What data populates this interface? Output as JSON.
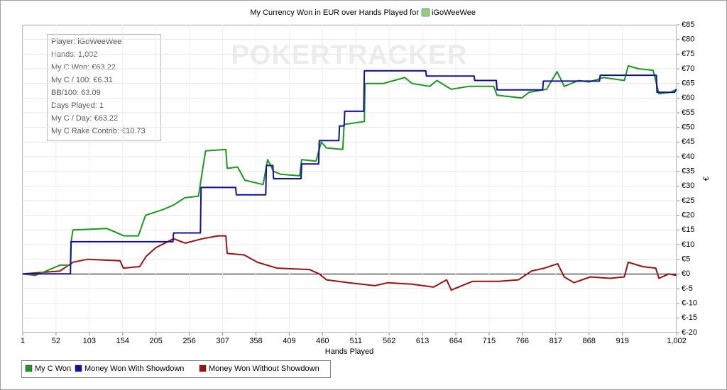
{
  "chart_data": {
    "type": "line",
    "title": "My Currency Won in EUR over Hands Played for",
    "title_player": "iGoWeeWee",
    "watermark": "POKERTRACKER",
    "x_label": "Hands Played",
    "y_label": "€",
    "stats_box": [
      "Player: iGoWeeWee",
      "Hands: 1,002",
      "My C Won: €63.22",
      "My C / 100: €6.31",
      "BB/100: 63.09",
      "Days Played: 1",
      "My C / Day: €63.22",
      "My C Rake Contrib: €10.73"
    ],
    "xlim": [
      1,
      1002
    ],
    "xticks": [
      1,
      52,
      103,
      154,
      205,
      256,
      307,
      358,
      409,
      460,
      511,
      562,
      613,
      664,
      715,
      766,
      817,
      868,
      919,
      {
        "value": 1002,
        "label": "1,002"
      }
    ],
    "ylim": [
      -20,
      85
    ],
    "yticks": [
      {
        "value": -20,
        "label": "€-20"
      },
      {
        "value": -15,
        "label": "€-15"
      },
      {
        "value": -10,
        "label": "€-10"
      },
      {
        "value": -5,
        "label": "€-5"
      },
      {
        "value": 0,
        "label": "€0"
      },
      {
        "value": 5,
        "label": "€5"
      },
      {
        "value": 10,
        "label": "€10"
      },
      {
        "value": 15,
        "label": "€15"
      },
      {
        "value": 20,
        "label": "€20"
      },
      {
        "value": 25,
        "label": "€25"
      },
      {
        "value": 30,
        "label": "€30"
      },
      {
        "value": 35,
        "label": "€35"
      },
      {
        "value": 40,
        "label": "€40"
      },
      {
        "value": 45,
        "label": "€45"
      },
      {
        "value": 50,
        "label": "€50"
      },
      {
        "value": 55,
        "label": "€55"
      },
      {
        "value": 60,
        "label": "€60"
      },
      {
        "value": 65,
        "label": "€65"
      },
      {
        "value": 70,
        "label": "€70"
      },
      {
        "value": 75,
        "label": "€75"
      },
      {
        "value": 80,
        "label": "€80"
      },
      {
        "value": 85,
        "label": "€85"
      }
    ],
    "grid": true,
    "legend": "bottom",
    "series": [
      {
        "name": "My C Won",
        "color": "#1a9a1a",
        "x": [
          1,
          20,
          37,
          58,
          74,
          75,
          78,
          130,
          156,
          178,
          189,
          216,
          232,
          249,
          270,
          276,
          281,
          312,
          314,
          330,
          341,
          369,
          376,
          385,
          396,
          425,
          428,
          450,
          458,
          466,
          491,
          493,
          524,
          525,
          553,
          586,
          597,
          624,
          635,
          657,
          684,
          722,
          727,
          765,
          776,
          803,
          819,
          830,
          852,
          868,
          890,
          922,
          928,
          944,
          966,
          975,
          993,
          1002
        ],
        "values": [
          0,
          -0.5,
          1,
          3,
          3,
          11,
          15,
          15.5,
          13,
          13,
          20,
          22,
          23.5,
          26,
          26.5,
          35,
          42,
          42.5,
          36,
          36.5,
          32,
          30.5,
          39,
          35,
          34,
          33.5,
          39,
          38.5,
          45,
          43,
          42.5,
          51,
          52,
          65,
          65,
          67,
          65,
          64,
          66,
          63,
          64,
          64,
          61,
          60,
          62,
          63,
          69,
          64,
          66,
          65.5,
          67,
          66,
          71,
          70,
          69.5,
          61.5,
          62,
          63
        ]
      },
      {
        "name": "Money Won With Showdown",
        "color": "#1010a0",
        "x": [
          1,
          74,
          75,
          231,
          232,
          273,
          274,
          327,
          328,
          373,
          374,
          384,
          385,
          427,
          428,
          454,
          455,
          485,
          486,
          493,
          494,
          523,
          524,
          618,
          619,
          692,
          693,
          726,
          727,
          797,
          798,
          884,
          885,
          971,
          972,
          999,
          1002
        ],
        "values": [
          0,
          0,
          11,
          11,
          14,
          14,
          29.5,
          29.5,
          27,
          27,
          37,
          37,
          32.5,
          32.5,
          37.5,
          37.5,
          45.5,
          45.5,
          50.5,
          50.5,
          55.5,
          55.5,
          69.3,
          69.3,
          67.5,
          67.5,
          66,
          66,
          62.8,
          62.8,
          65.8,
          65.8,
          67.8,
          67.8,
          62,
          62,
          63
        ]
      },
      {
        "name": "Money Won Without Showdown",
        "color": "#a01010",
        "x": [
          1,
          58,
          78,
          100,
          150,
          155,
          180,
          190,
          205,
          232,
          250,
          276,
          300,
          312,
          314,
          340,
          360,
          390,
          440,
          455,
          466,
          500,
          540,
          560,
          597,
          630,
          650,
          657,
          690,
          730,
          760,
          780,
          800,
          820,
          830,
          845,
          870,
          900,
          922,
          928,
          950,
          970,
          975,
          990,
          1002
        ],
        "values": [
          0,
          1,
          4,
          5,
          4.5,
          2,
          2.5,
          6,
          9,
          12,
          10.5,
          12,
          13,
          13,
          7,
          6.5,
          4,
          2,
          1.5,
          0,
          -2,
          -3,
          -4,
          -3,
          -3.5,
          -4.5,
          -2,
          -5.5,
          -2.5,
          -2.5,
          -2,
          1,
          2,
          3.5,
          -1,
          -3,
          -1,
          -1.5,
          -1,
          4,
          2.5,
          2,
          -1.5,
          0,
          -0.5
        ]
      }
    ]
  }
}
